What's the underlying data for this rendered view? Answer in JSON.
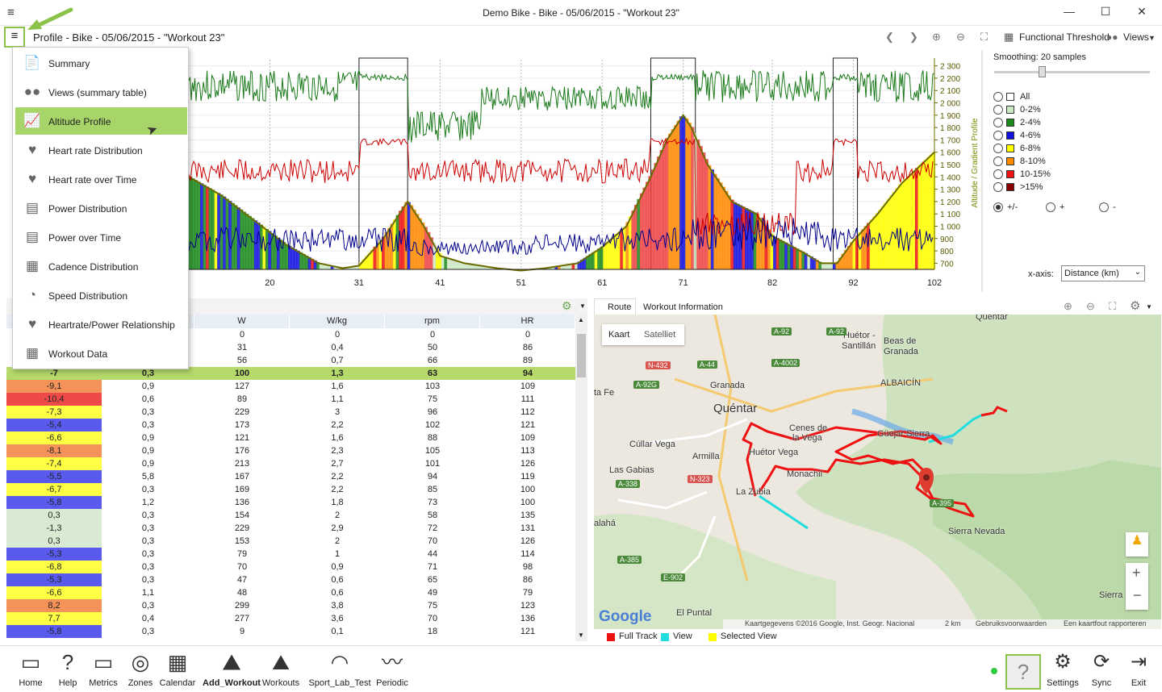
{
  "window": {
    "title": "Demo Bike - Bike - 05/06/2015 - \"Workout 23\"",
    "min": "—",
    "max": "☐",
    "close": "✕"
  },
  "header": {
    "title": "Profile - Bike - 05/06/2015 - \"Workout 23\"",
    "functional_threshold": "Functional Threshold",
    "views": "Views"
  },
  "chart_data": {
    "type": "area",
    "xlabel": "",
    "ylabel": "Altitude / Gradient Profile",
    "x_ticks": [
      "20",
      "31",
      "41",
      "51",
      "61",
      "71",
      "82",
      "92",
      "102"
    ],
    "y_ticks": [
      "700",
      "800",
      "900",
      "1 000",
      "1 100",
      "1 200",
      "1 300",
      "1 400",
      "1 500",
      "1 600",
      "1 700",
      "1 800",
      "1 900",
      "2 000",
      "2 100",
      "2 200",
      "2 300"
    ],
    "altitude_profile": {
      "x": [
        10,
        14,
        18,
        22,
        26,
        29,
        31,
        34,
        37,
        39,
        41,
        44,
        48,
        51,
        54,
        58,
        61,
        64,
        67,
        69,
        71,
        72,
        74,
        77,
        80,
        82,
        84,
        86,
        88,
        90,
        92,
        95,
        98,
        102
      ],
      "y": [
        1400,
        1250,
        1050,
        850,
        700,
        660,
        680,
        900,
        1200,
        1000,
        760,
        700,
        660,
        640,
        660,
        700,
        830,
        1000,
        1400,
        1700,
        1900,
        1800,
        1500,
        1200,
        1100,
        920,
        850,
        780,
        700,
        700,
        880,
        1100,
        1350,
        1600
      ]
    },
    "series_colors": {
      "power": "#1a7a1a",
      "heart_rate": "#cc0000",
      "cadence": "#00008b",
      "altitude": "#6b6b00"
    }
  },
  "smoothing": {
    "label": "Smoothing: 20 samples",
    "value": 20
  },
  "gradient_legend": [
    {
      "label": "All",
      "color": "#ffffff"
    },
    {
      "label": "0-2%",
      "color": "#cde8c5"
    },
    {
      "label": "2-4%",
      "color": "#1a8a1a"
    },
    {
      "label": "4-6%",
      "color": "#1010e0"
    },
    {
      "label": "6-8%",
      "color": "#ffff00"
    },
    {
      "label": "8-10%",
      "color": "#ff8a00"
    },
    {
      "label": "10-15%",
      "color": "#ee1111"
    },
    {
      "label": ">15%",
      "color": "#8a0000"
    }
  ],
  "sign_options": [
    "+/-",
    "+",
    "-"
  ],
  "xaxis": {
    "label": "x-axis:",
    "value": "Distance (km)"
  },
  "menu": [
    {
      "label": "Summary",
      "icon": "summary-icon"
    },
    {
      "label": "Views (summary table)",
      "icon": "views-icon"
    },
    {
      "label": "Altitude Profile",
      "icon": "altitude-icon",
      "selected": true
    },
    {
      "label": "Heart rate Distribution",
      "icon": "heart-distribution-icon"
    },
    {
      "label": "Heart rate over Time",
      "icon": "heart-time-icon"
    },
    {
      "label": "Power Distribution",
      "icon": "power-distribution-icon"
    },
    {
      "label": "Power over Time",
      "icon": "power-time-icon"
    },
    {
      "label": "Cadence Distribution",
      "icon": "cadence-icon"
    },
    {
      "label": "Speed Distribution",
      "icon": "speed-icon"
    },
    {
      "label": "Heartrate/Power Relationship",
      "icon": "hr-power-icon"
    },
    {
      "label": "Workout Data",
      "icon": "workout-data-icon"
    }
  ],
  "table": {
    "headers": [
      "",
      "",
      "W",
      "W/kg",
      "rpm",
      "HR"
    ],
    "rows": [
      {
        "c": [
          "",
          "",
          "0",
          "0",
          "0",
          "0"
        ],
        "color": "#ffffff"
      },
      {
        "c": [
          "",
          "",
          "31",
          "0,4",
          "50",
          "86"
        ],
        "color": "#ffffff"
      },
      {
        "c": [
          "",
          "",
          "56",
          "0,7",
          "66",
          "89"
        ],
        "color": "#ffffff"
      },
      {
        "c": [
          "-7",
          "0,3",
          "100",
          "1,3",
          "63",
          "94"
        ],
        "color": "#b5d96b",
        "hl": true
      },
      {
        "c": [
          "-9,1",
          "0,9",
          "127",
          "1,6",
          "103",
          "109"
        ],
        "color": "#f5925a"
      },
      {
        "c": [
          "-10,4",
          "0,6",
          "89",
          "1,1",
          "75",
          "111"
        ],
        "color": "#ee4a4a"
      },
      {
        "c": [
          "-7,3",
          "0,3",
          "229",
          "3",
          "96",
          "112"
        ],
        "color": "#ffff44"
      },
      {
        "c": [
          "-5,4",
          "0,3",
          "173",
          "2,2",
          "102",
          "121"
        ],
        "color": "#5a5aee"
      },
      {
        "c": [
          "-6,6",
          "0,9",
          "121",
          "1,6",
          "88",
          "109"
        ],
        "color": "#ffff44"
      },
      {
        "c": [
          "-8,1",
          "0,9",
          "176",
          "2,3",
          "105",
          "113"
        ],
        "color": "#f5925a"
      },
      {
        "c": [
          "-7,4",
          "0,9",
          "213",
          "2,7",
          "101",
          "126"
        ],
        "color": "#ffff44"
      },
      {
        "c": [
          "-5,5",
          "5,8",
          "167",
          "2,2",
          "94",
          "119"
        ],
        "color": "#5a5aee"
      },
      {
        "c": [
          "-6,7",
          "0,3",
          "169",
          "2,2",
          "85",
          "100"
        ],
        "color": "#ffff44"
      },
      {
        "c": [
          "-5,8",
          "1,2",
          "136",
          "1,8",
          "73",
          "100"
        ],
        "color": "#5a5aee"
      },
      {
        "c": [
          "0,3",
          "0,3",
          "154",
          "2",
          "58",
          "135"
        ],
        "color": "#d9ead3"
      },
      {
        "c": [
          "-1,3",
          "0,3",
          "229",
          "2,9",
          "72",
          "131"
        ],
        "color": "#d9ead3"
      },
      {
        "c": [
          "0,3",
          "0,3",
          "153",
          "2",
          "70",
          "126"
        ],
        "color": "#d9ead3"
      },
      {
        "c": [
          "-5,3",
          "0,3",
          "79",
          "1",
          "44",
          "114"
        ],
        "color": "#5a5aee"
      },
      {
        "c": [
          "-6,8",
          "0,3",
          "70",
          "0,9",
          "71",
          "98"
        ],
        "color": "#ffff44"
      },
      {
        "c": [
          "-5,3",
          "0,3",
          "47",
          "0,6",
          "65",
          "86"
        ],
        "color": "#5a5aee"
      },
      {
        "c": [
          "-6,6",
          "1,1",
          "48",
          "0,6",
          "49",
          "79"
        ],
        "color": "#ffff44"
      },
      {
        "c": [
          "8,2",
          "0,3",
          "299",
          "3,8",
          "75",
          "123"
        ],
        "color": "#f5925a"
      },
      {
        "c": [
          "7,7",
          "0,4",
          "277",
          "3,6",
          "70",
          "136"
        ],
        "color": "#ffff44"
      },
      {
        "c": [
          "-5,8",
          "0,3",
          "9",
          "0,1",
          "18",
          "121"
        ],
        "color": "#5a5aee"
      }
    ]
  },
  "map_tabs": [
    "Route",
    "Workout Information"
  ],
  "map": {
    "type_buttons": [
      "Kaart",
      "Satelliet"
    ],
    "places": [
      "Quéntar",
      "Huétor -",
      "Santillán",
      "Beas de",
      "Granada",
      "Quéntar",
      "ALBAICÍN",
      "Granada",
      "ta Fe",
      "Cenes de",
      "la Vega",
      "Güejar Sierra",
      "Cúllar Vega",
      "Armilla",
      "Huétor Vega",
      "Las Gabias",
      "Monachil",
      "La Zubia",
      "Sierra Nevada",
      "alahá",
      "El Puntal",
      "Sierra"
    ],
    "roads": [
      "A-92",
      "A-92",
      "A-44",
      "A-4002",
      "N-432",
      "A-92G",
      "A-338",
      "N-323",
      "A-395",
      "A-385",
      "E-902"
    ],
    "logo": "Google",
    "attribution": "Kaartgegevens ©2016 Google, Inst. Geogr. Nacional",
    "scale": "2 km",
    "terms": "Gebruiksvoorwaarden",
    "report": "Een kaartfout rapporteren",
    "zoom_in": "+",
    "zoom_out": "−"
  },
  "map_legend": [
    {
      "label": "Full Track",
      "color": "#ee1111"
    },
    {
      "label": "View",
      "color": "#22dddd"
    },
    {
      "label": "Selected View",
      "color": "#ffff00"
    }
  ],
  "bottom_nav": [
    "Home",
    "Help",
    "Metrics",
    "Zones",
    "Calendar",
    "Add_Workout",
    "Workouts",
    "Sport_Lab_Test",
    "Periodic"
  ],
  "bottom_right": [
    "Settings",
    "Sync",
    "Exit"
  ]
}
